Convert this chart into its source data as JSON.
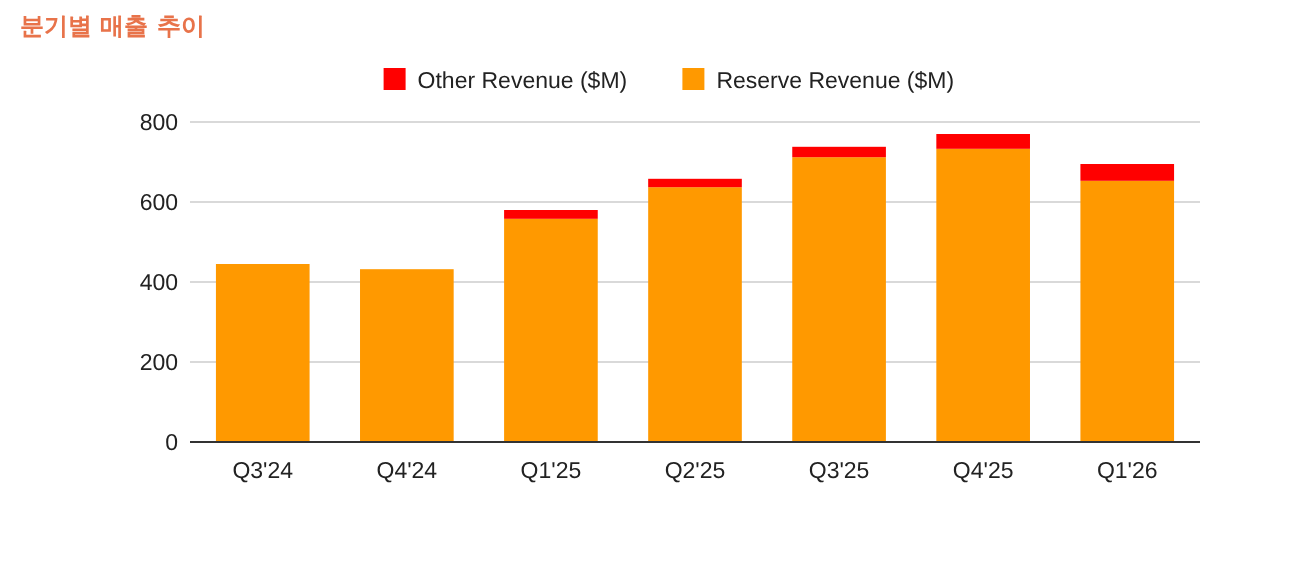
{
  "chart_data": {
    "type": "bar",
    "title": "분기별 매출 추이",
    "categories": [
      "Q3'24",
      "Q4'24",
      "Q1'25",
      "Q2'25",
      "Q3'25",
      "Q4'25",
      "Q1'26"
    ],
    "stacked": true,
    "series": [
      {
        "name": "Reserve Revenue ($M)",
        "color": "#ff9900",
        "values": [
          445,
          432,
          558,
          637,
          712,
          733,
          653
        ]
      },
      {
        "name": "Other Revenue ($M)",
        "color": "#ff0000",
        "values": [
          null,
          null,
          22,
          21,
          26,
          37,
          42
        ]
      }
    ],
    "ylim": [
      0,
      800
    ],
    "yticks": [
      0,
      200,
      400,
      600,
      800
    ],
    "grid": "y",
    "legend": "top"
  }
}
